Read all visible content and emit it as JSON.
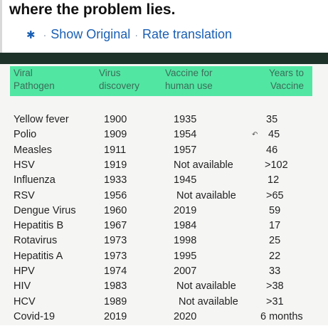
{
  "post": {
    "headline": "where the problem lies.",
    "show_original": "Show Original",
    "separator": "·",
    "rate_translation": "Rate translation",
    "gear_icon": "gear-icon"
  },
  "table": {
    "headers": {
      "pathogen": [
        "Viral",
        "Pathogen"
      ],
      "discovery": [
        "Virus",
        "discovery"
      ],
      "vaccine": [
        "Vaccine for",
        "human use"
      ],
      "years": [
        "Years to",
        "Vaccine"
      ]
    },
    "header_color": "#52e6a3",
    "rows": [
      {
        "pathogen": "Yellow fever",
        "discovery": "1900",
        "vaccine": "1935",
        "years": "35"
      },
      {
        "pathogen": "Polio",
        "discovery": "1909",
        "vaccine": "1954",
        "years": "45"
      },
      {
        "pathogen": "Measles",
        "discovery": "1911",
        "vaccine": "1957",
        "years": "46"
      },
      {
        "pathogen": "HSV",
        "discovery": "1919",
        "vaccine": "Not available",
        "years": ">102"
      },
      {
        "pathogen": "Influenza",
        "discovery": "1933",
        "vaccine": "1945",
        "years": "12"
      },
      {
        "pathogen": "RSV",
        "discovery": "1956",
        "vaccine": "Not available",
        "years": ">65"
      },
      {
        "pathogen": "Dengue Virus",
        "discovery": "1960",
        "vaccine": "2019",
        "years": "59"
      },
      {
        "pathogen": "Hepatitis B",
        "discovery": "1967",
        "vaccine": "1984",
        "years": "17"
      },
      {
        "pathogen": "Rotavirus",
        "discovery": "1973",
        "vaccine": "1998",
        "years": "25"
      },
      {
        "pathogen": "Hepatitis A",
        "discovery": "1973",
        "vaccine": "1995",
        "years": "22"
      },
      {
        "pathogen": "HPV",
        "discovery": "1974",
        "vaccine": "2007",
        "years": "33"
      },
      {
        "pathogen": "HIV",
        "discovery": "1983",
        "vaccine": "Not available",
        "years": ">38"
      },
      {
        "pathogen": "HCV",
        "discovery": "1989",
        "vaccine": "Not available",
        "years": ">31"
      },
      {
        "pathogen": "Covid-19",
        "discovery": "2019",
        "vaccine": "2020",
        "years": "6 months"
      }
    ]
  }
}
